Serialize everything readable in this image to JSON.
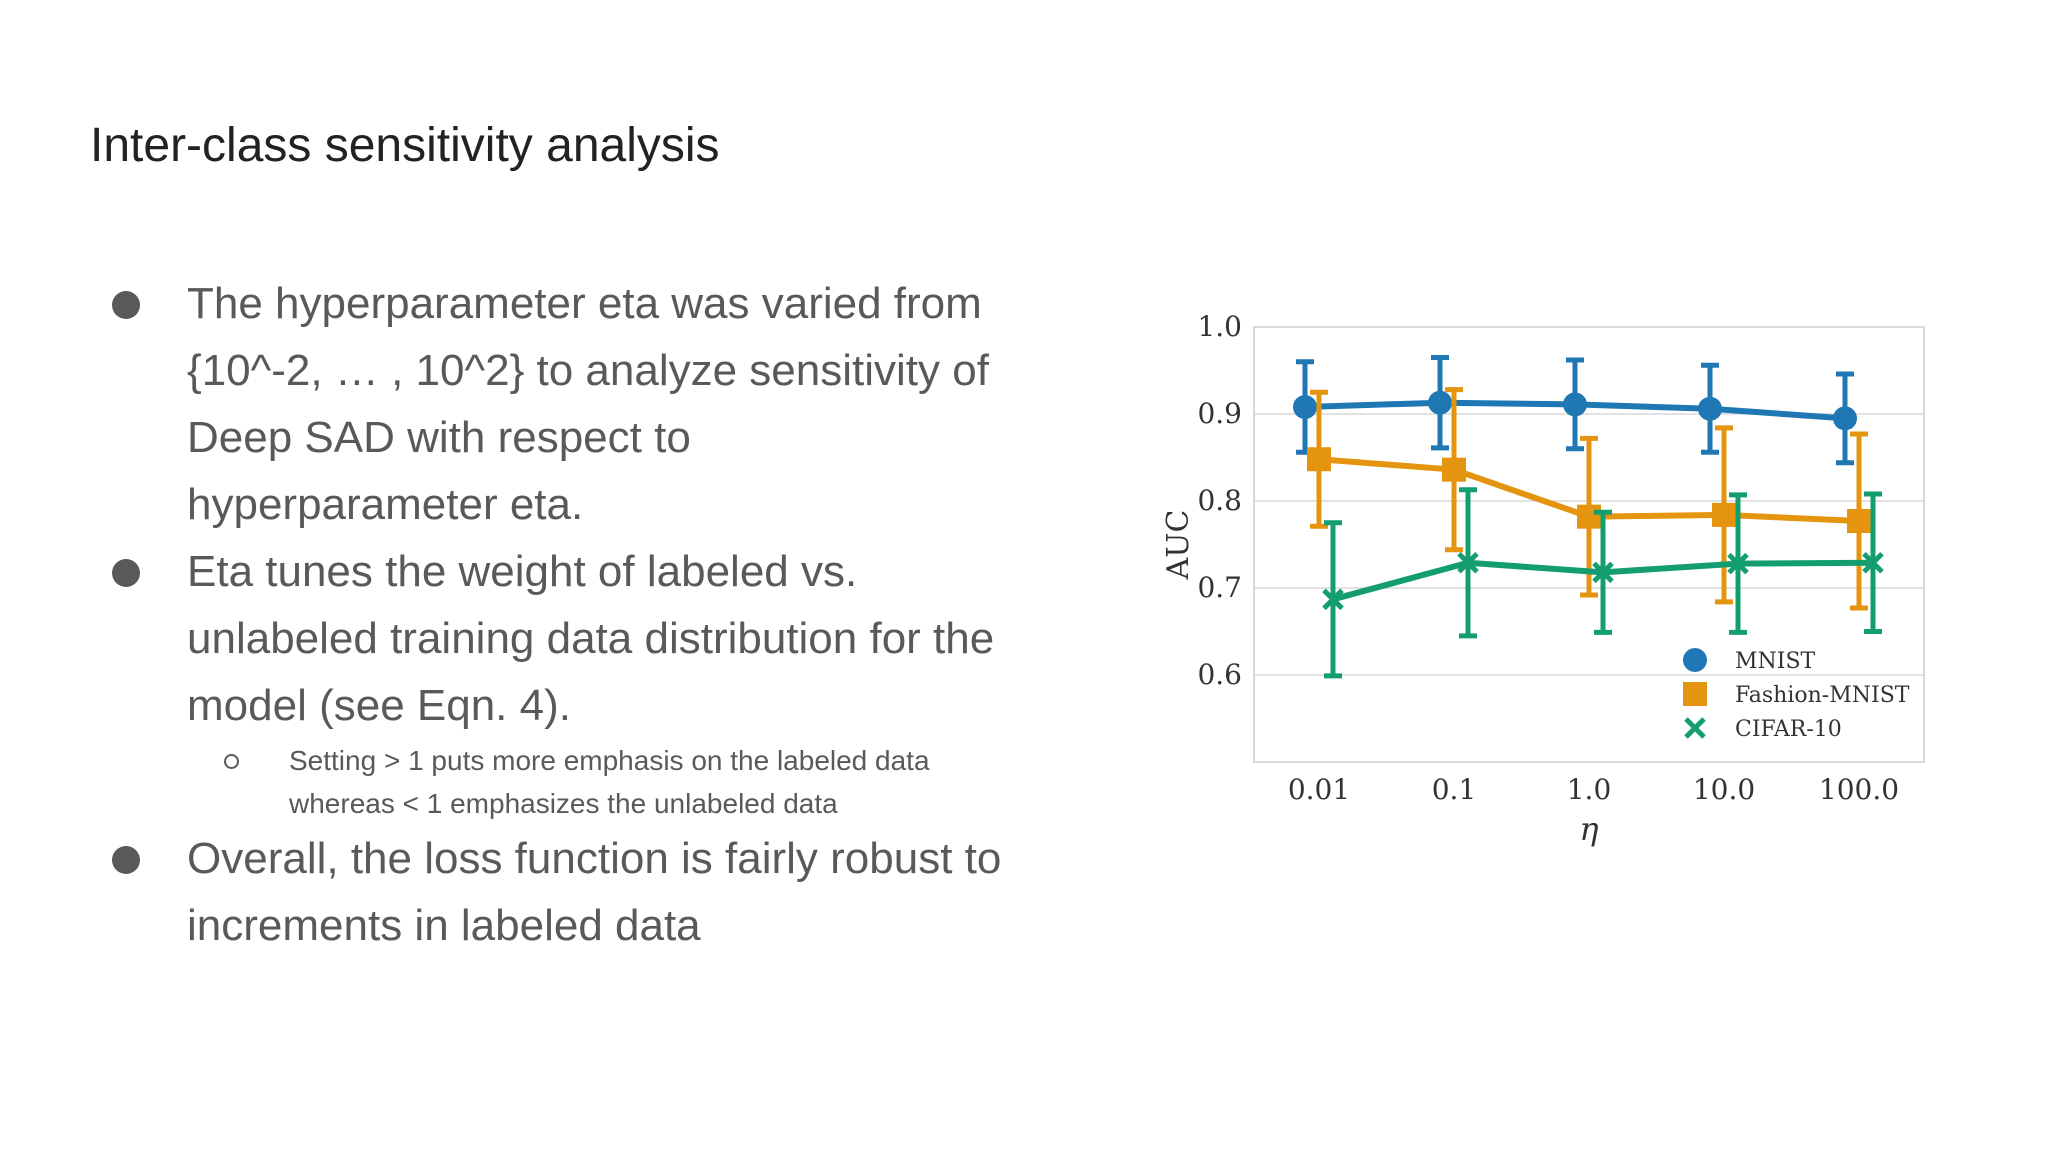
{
  "slide": {
    "title": "Inter-class sensitivity analysis",
    "bullets": [
      {
        "text": "The hyperparameter eta was varied from {10^-2, … , 10^2} to analyze sensitivity of Deep SAD with respect to hyperparameter eta."
      },
      {
        "text": "Eta tunes the weight of labeled vs. unlabeled training data distribution for the model (see Eqn. 4).",
        "sub": "Setting  > 1 puts more emphasis on the labeled data whereas  < 1 emphasizes the unlabeled data"
      },
      {
        "text": "Overall, the loss function is fairly robust to increments in labeled data"
      }
    ]
  },
  "chart_data": {
    "type": "line",
    "title": "",
    "xlabel": "η",
    "ylabel": "AUC",
    "categories": [
      "0.01",
      "0.1",
      "1.0",
      "10.0",
      "100.0"
    ],
    "ylim": [
      0.5,
      1.0
    ],
    "yticks": [
      "0.6",
      "0.7",
      "0.8",
      "0.9",
      "1.0"
    ],
    "grid": true,
    "legend_position": "bottom-right",
    "series": [
      {
        "name": "MNIST",
        "color": "#1f77b4",
        "marker": "circle",
        "values": [
          0.908,
          0.913,
          0.911,
          0.906,
          0.895
        ],
        "err": [
          0.052,
          0.052,
          0.051,
          0.05,
          0.051
        ]
      },
      {
        "name": "Fashion-MNIST",
        "color": "#e5940f",
        "marker": "square",
        "values": [
          0.848,
          0.836,
          0.782,
          0.784,
          0.777
        ],
        "err": [
          0.077,
          0.092,
          0.09,
          0.1,
          0.1
        ]
      },
      {
        "name": "CIFAR-10",
        "color": "#149e70",
        "marker": "x",
        "values": [
          0.687,
          0.729,
          0.718,
          0.728,
          0.729
        ],
        "err": [
          0.088,
          0.084,
          0.069,
          0.079,
          0.079
        ]
      }
    ]
  }
}
